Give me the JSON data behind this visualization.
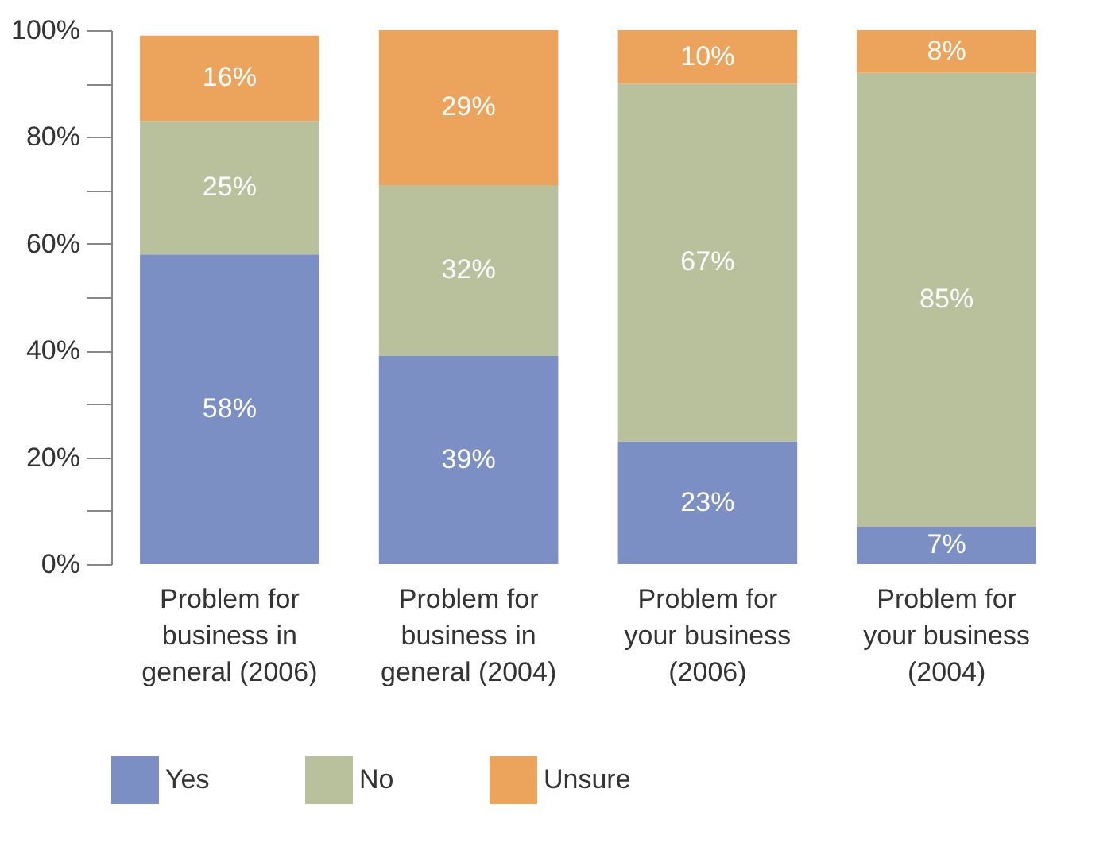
{
  "chart_data": {
    "type": "bar",
    "stacked": true,
    "categories": [
      "Problem for\nbusiness in\ngeneral (2006)",
      "Problem for\nbusiness in\ngeneral (2004)",
      "Problem for\nyour business\n(2006)",
      "Problem for\nyour business\n(2004)"
    ],
    "series": [
      {
        "name": "Yes",
        "color": "#7b8fc4",
        "values": [
          58,
          39,
          23,
          7
        ],
        "value_labels": [
          "58%",
          "39%",
          "23%",
          "7%"
        ]
      },
      {
        "name": "No",
        "color": "#b9c09c",
        "values": [
          25,
          32,
          67,
          85
        ],
        "value_labels": [
          "25%",
          "32%",
          "67%",
          "85%"
        ]
      },
      {
        "name": "Unsure",
        "color": "#eca45c",
        "values": [
          16,
          29,
          10,
          8
        ],
        "value_labels": [
          "16%",
          "29%",
          "10%",
          "8%"
        ]
      }
    ],
    "ylim": [
      0,
      100
    ],
    "yticks": [
      {
        "value": 0,
        "label": "0%"
      },
      {
        "value": 10,
        "label": null
      },
      {
        "value": 20,
        "label": "20%"
      },
      {
        "value": 30,
        "label": null
      },
      {
        "value": 40,
        "label": "40%"
      },
      {
        "value": 50,
        "label": null
      },
      {
        "value": 60,
        "label": "60%"
      },
      {
        "value": 70,
        "label": null
      },
      {
        "value": 80,
        "label": "80%"
      },
      {
        "value": 90,
        "label": null
      },
      {
        "value": 100,
        "label": "100%"
      }
    ],
    "grid": false,
    "legend": "bottom"
  }
}
